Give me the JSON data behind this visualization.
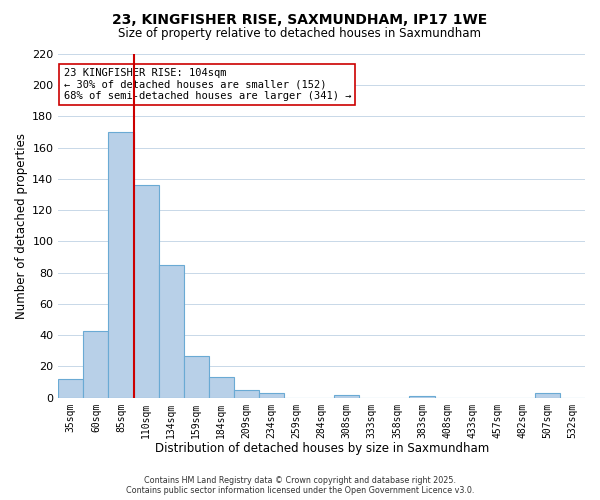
{
  "title": "23, KINGFISHER RISE, SAXMUNDHAM, IP17 1WE",
  "subtitle": "Size of property relative to detached houses in Saxmundham",
  "xlabel": "Distribution of detached houses by size in Saxmundham",
  "ylabel": "Number of detached properties",
  "bar_color": "#b8d0e8",
  "bar_edge_color": "#6aaad4",
  "categories": [
    "35sqm",
    "60sqm",
    "85sqm",
    "110sqm",
    "134sqm",
    "159sqm",
    "184sqm",
    "209sqm",
    "234sqm",
    "259sqm",
    "284sqm",
    "308sqm",
    "333sqm",
    "358sqm",
    "383sqm",
    "408sqm",
    "433sqm",
    "457sqm",
    "482sqm",
    "507sqm",
    "532sqm"
  ],
  "values": [
    12,
    43,
    170,
    136,
    85,
    27,
    13,
    5,
    3,
    0,
    0,
    2,
    0,
    0,
    1,
    0,
    0,
    0,
    0,
    3,
    0
  ],
  "ylim": [
    0,
    220
  ],
  "yticks": [
    0,
    20,
    40,
    60,
    80,
    100,
    120,
    140,
    160,
    180,
    200,
    220
  ],
  "vline_color": "#cc0000",
  "vline_index": 2.5,
  "annotation_title": "23 KINGFISHER RISE: 104sqm",
  "annotation_line1": "← 30% of detached houses are smaller (152)",
  "annotation_line2": "68% of semi-detached houses are larger (341) →",
  "footer_line1": "Contains HM Land Registry data © Crown copyright and database right 2025.",
  "footer_line2": "Contains public sector information licensed under the Open Government Licence v3.0.",
  "background_color": "#ffffff",
  "grid_color": "#c8d8e8"
}
